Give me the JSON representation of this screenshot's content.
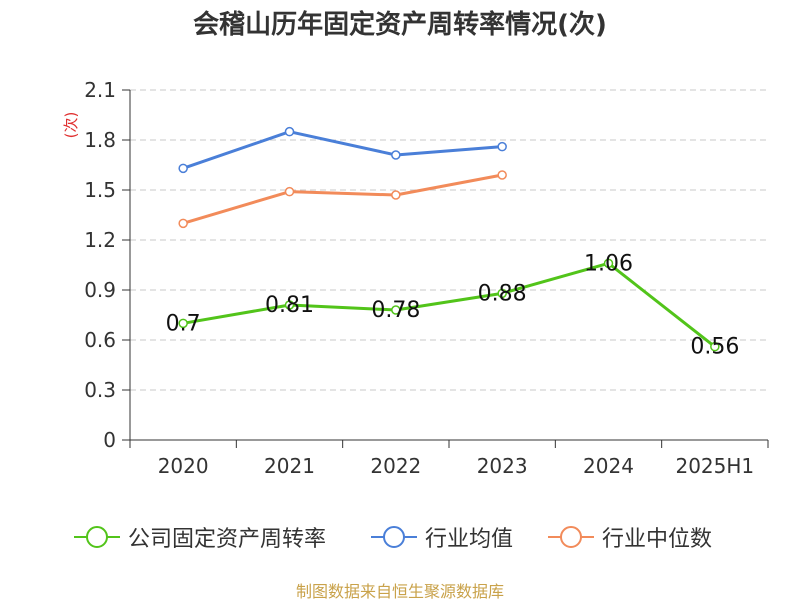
{
  "title": "会稽山历年固定资产周转率情况(次)",
  "source": "制图数据来自恒生聚源数据库",
  "chart_data": {
    "type": "line",
    "title": "会稽山历年固定资产周转率情况(次)",
    "ylabel": "(次)",
    "xlabel": "",
    "categories": [
      "2020",
      "2021",
      "2022",
      "2023",
      "2024",
      "2025H1"
    ],
    "y_ticks": [
      "0",
      "0.3",
      "0.6",
      "0.9",
      "1.2",
      "1.5",
      "1.8",
      "2.1"
    ],
    "ylim": [
      0,
      2.1
    ],
    "grid": true,
    "legend_position": "bottom",
    "series": [
      {
        "name": "公司固定资产周转率",
        "color": "#52c41a",
        "values": [
          0.7,
          0.81,
          0.78,
          0.88,
          1.06,
          0.56
        ],
        "labels": [
          "0.7",
          "0.81",
          "0.78",
          "0.88",
          "1.06",
          "0.56"
        ]
      },
      {
        "name": "行业均值",
        "color": "#4a7fd8",
        "values": [
          1.63,
          1.85,
          1.71,
          1.76,
          null,
          null
        ]
      },
      {
        "name": "行业中位数",
        "color": "#f28b5a",
        "values": [
          1.3,
          1.49,
          1.47,
          1.59,
          null,
          null
        ]
      }
    ]
  }
}
